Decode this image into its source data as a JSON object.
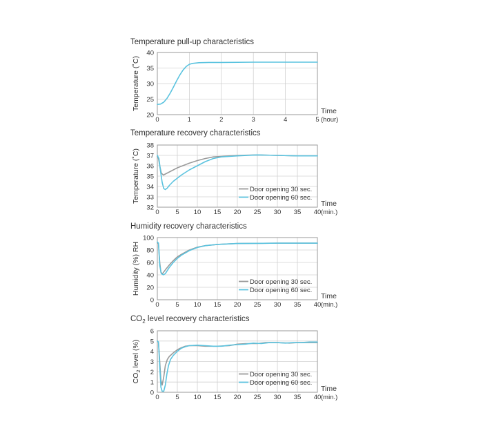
{
  "colors": {
    "cyan": "#5bc3df",
    "gray": "#9a9a9a",
    "grid": "#d0d0d0",
    "frame": "#9a9a9a"
  },
  "chart_data": [
    {
      "type": "line",
      "title": "Temperature pull-up characteristics",
      "ylabel": "Temperature (˚C)",
      "xlabel_line1": "Time",
      "xlabel_line2": "(hour)",
      "xlim": [
        0,
        5
      ],
      "ylim": [
        20,
        40
      ],
      "x_ticks": [
        0,
        1,
        2,
        3,
        4,
        5
      ],
      "y_ticks": [
        20,
        25,
        30,
        35,
        40
      ],
      "series": [
        {
          "color": "#5bc3df",
          "points": [
            [
              0,
              23.3
            ],
            [
              0.1,
              23.4
            ],
            [
              0.2,
              24
            ],
            [
              0.3,
              25.2
            ],
            [
              0.4,
              26.9
            ],
            [
              0.5,
              28.8
            ],
            [
              0.6,
              30.8
            ],
            [
              0.7,
              32.7
            ],
            [
              0.8,
              34.3
            ],
            [
              0.9,
              35.5
            ],
            [
              1.0,
              36.2
            ],
            [
              1.1,
              36.5
            ],
            [
              1.3,
              36.7
            ],
            [
              1.6,
              36.8
            ],
            [
              2,
              36.8
            ],
            [
              3,
              36.9
            ],
            [
              4,
              36.9
            ],
            [
              5,
              36.9
            ]
          ]
        }
      ]
    },
    {
      "type": "line",
      "title": "Temperature recovery characteristics",
      "ylabel": "Temperature (˚C)",
      "xlabel_line1": "Time",
      "xlabel_line2": "(min.)",
      "xlim": [
        0,
        40
      ],
      "ylim": [
        32,
        38
      ],
      "x_ticks": [
        0,
        5,
        10,
        15,
        20,
        25,
        30,
        35,
        40
      ],
      "y_ticks": [
        32,
        33,
        34,
        35,
        36,
        37,
        38
      ],
      "legend_position": "bottom-right",
      "series": [
        {
          "name": "Door opening 30 sec.",
          "color": "#9a9a9a",
          "points": [
            [
              0,
              36.9
            ],
            [
              0.3,
              36.7
            ],
            [
              0.6,
              36
            ],
            [
              1,
              35.3
            ],
            [
              1.5,
              35.1
            ],
            [
              2,
              35.2
            ],
            [
              3,
              35.4
            ],
            [
              4,
              35.6
            ],
            [
              5,
              35.8
            ],
            [
              6,
              35.95
            ],
            [
              8,
              36.25
            ],
            [
              10,
              36.5
            ],
            [
              12,
              36.7
            ],
            [
              14,
              36.85
            ],
            [
              16,
              36.9
            ],
            [
              18,
              36.95
            ],
            [
              20,
              37
            ],
            [
              25,
              37.05
            ],
            [
              30,
              37
            ],
            [
              35,
              36.95
            ],
            [
              40,
              36.95
            ]
          ]
        },
        {
          "name": "Door opening 60 sec.",
          "color": "#5bc3df",
          "points": [
            [
              0,
              37
            ],
            [
              0.4,
              36.7
            ],
            [
              0.8,
              35.5
            ],
            [
              1.2,
              34.4
            ],
            [
              1.6,
              33.8
            ],
            [
              2,
              33.7
            ],
            [
              2.5,
              33.85
            ],
            [
              3,
              34.1
            ],
            [
              4,
              34.5
            ],
            [
              5,
              34.8
            ],
            [
              6,
              35.1
            ],
            [
              8,
              35.6
            ],
            [
              10,
              36
            ],
            [
              12,
              36.4
            ],
            [
              14,
              36.7
            ],
            [
              16,
              36.85
            ],
            [
              18,
              36.9
            ],
            [
              20,
              36.95
            ],
            [
              25,
              37.05
            ],
            [
              30,
              37
            ],
            [
              35,
              36.95
            ],
            [
              40,
              36.95
            ]
          ]
        }
      ]
    },
    {
      "type": "line",
      "title": "Humidity recovery characteristics",
      "ylabel": "Humidity (%) RH",
      "xlabel_line1": "Time",
      "xlabel_line2": "(min.)",
      "xlim": [
        0,
        40
      ],
      "ylim": [
        0,
        100
      ],
      "x_ticks": [
        0,
        5,
        10,
        15,
        20,
        25,
        30,
        35,
        40
      ],
      "y_ticks": [
        0,
        20,
        40,
        60,
        80,
        100
      ],
      "legend_position": "bottom-right",
      "series": [
        {
          "name": "Door opening 30 sec.",
          "color": "#9a9a9a",
          "points": [
            [
              0,
              92
            ],
            [
              0.3,
              90
            ],
            [
              0.6,
              60
            ],
            [
              0.9,
              44
            ],
            [
              1.3,
              42
            ],
            [
              2,
              48
            ],
            [
              3,
              56
            ],
            [
              4,
              63
            ],
            [
              5,
              69
            ],
            [
              6,
              73
            ],
            [
              8,
              80
            ],
            [
              10,
              84.5
            ],
            [
              12,
              87
            ],
            [
              15,
              89
            ],
            [
              20,
              90.5
            ],
            [
              30,
              91
            ],
            [
              40,
              91
            ]
          ]
        },
        {
          "name": "Door opening 60 sec.",
          "color": "#5bc3df",
          "points": [
            [
              0,
              93
            ],
            [
              0.3,
              91
            ],
            [
              0.6,
              55
            ],
            [
              1,
              42
            ],
            [
              1.5,
              40
            ],
            [
              2,
              42
            ],
            [
              3,
              52
            ],
            [
              4,
              60
            ],
            [
              5,
              66.5
            ],
            [
              6,
              71.5
            ],
            [
              8,
              79
            ],
            [
              10,
              84
            ],
            [
              12,
              87
            ],
            [
              15,
              89
            ],
            [
              20,
              90.5
            ],
            [
              30,
              91
            ],
            [
              40,
              91
            ]
          ]
        }
      ]
    },
    {
      "type": "line",
      "title_prefix": "CO",
      "title_sub": "2",
      "title_suffix": " level recovery characteristics",
      "ylabel_prefix": "CO",
      "ylabel_sub": "2",
      "ylabel_suffix": " level (%)",
      "xlabel_line1": "Time",
      "xlabel_line2": "(min.)",
      "xlim": [
        0,
        40
      ],
      "ylim": [
        0,
        6
      ],
      "x_ticks": [
        0,
        5,
        10,
        15,
        20,
        25,
        30,
        35,
        40
      ],
      "y_ticks": [
        0,
        1,
        2,
        3,
        4,
        5,
        6
      ],
      "legend_position": "bottom-right",
      "series": [
        {
          "name": "Door opening 30 sec.",
          "color": "#9a9a9a",
          "points": [
            [
              0,
              5
            ],
            [
              0.3,
              4.9
            ],
            [
              0.6,
              3
            ],
            [
              0.9,
              1.2
            ],
            [
              1.2,
              0.7
            ],
            [
              1.6,
              1.5
            ],
            [
              2,
              2.6
            ],
            [
              2.5,
              3.2
            ],
            [
              3,
              3.5
            ],
            [
              4,
              3.85
            ],
            [
              5,
              4.15
            ],
            [
              6,
              4.35
            ],
            [
              7,
              4.5
            ],
            [
              8,
              4.55
            ],
            [
              10,
              4.55
            ],
            [
              12,
              4.5
            ],
            [
              15,
              4.5
            ],
            [
              18,
              4.55
            ],
            [
              20,
              4.7
            ],
            [
              22,
              4.75
            ],
            [
              25,
              4.75
            ],
            [
              27,
              4.85
            ],
            [
              30,
              4.85
            ],
            [
              33,
              4.8
            ],
            [
              35,
              4.85
            ],
            [
              38,
              4.85
            ],
            [
              40,
              4.85
            ]
          ]
        },
        {
          "name": "Door opening 60 sec.",
          "color": "#5bc3df",
          "points": [
            [
              0,
              5
            ],
            [
              0.3,
              4.9
            ],
            [
              0.6,
              2.5
            ],
            [
              0.9,
              0.5
            ],
            [
              1.2,
              0.1
            ],
            [
              1.6,
              0.1
            ],
            [
              2,
              0.7
            ],
            [
              2.4,
              1.8
            ],
            [
              2.8,
              2.6
            ],
            [
              3.3,
              3.2
            ],
            [
              4,
              3.6
            ],
            [
              5,
              4
            ],
            [
              6,
              4.3
            ],
            [
              7,
              4.45
            ],
            [
              8,
              4.55
            ],
            [
              10,
              4.6
            ],
            [
              12,
              4.55
            ],
            [
              14,
              4.5
            ],
            [
              16,
              4.5
            ],
            [
              18,
              4.6
            ],
            [
              20,
              4.65
            ],
            [
              22,
              4.7
            ],
            [
              24,
              4.8
            ],
            [
              26,
              4.75
            ],
            [
              28,
              4.85
            ],
            [
              30,
              4.85
            ],
            [
              32,
              4.8
            ],
            [
              34,
              4.85
            ],
            [
              36,
              4.85
            ],
            [
              38,
              4.9
            ],
            [
              40,
              4.9
            ]
          ]
        }
      ]
    }
  ]
}
